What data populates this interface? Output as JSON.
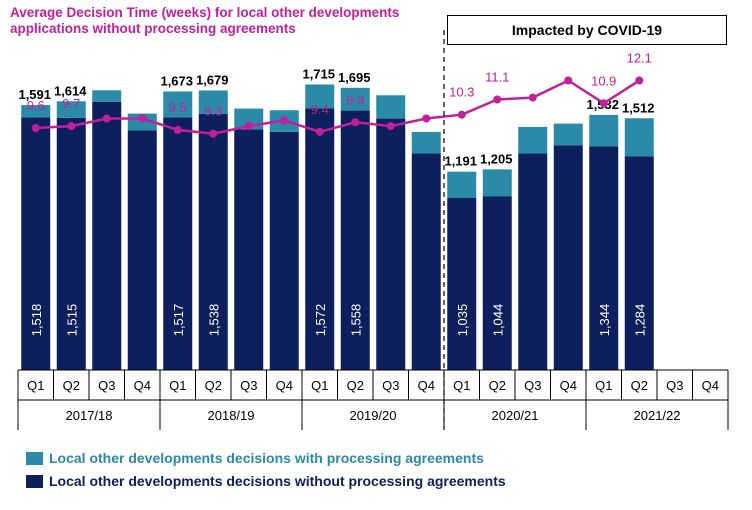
{
  "chart_data": {
    "type": "bar",
    "title": "Average Decision Time (weeks) for local other developments applications without processing agreements",
    "title_lines": [
      "Average Decision Time (weeks) for local other developments",
      "applications without processing agreements"
    ],
    "annotation": "Impacted by COVID-19",
    "quarters": [
      "Q1",
      "Q2",
      "Q3",
      "Q4",
      "Q1",
      "Q2",
      "Q3",
      "Q4",
      "Q1",
      "Q2",
      "Q3",
      "Q4",
      "Q1",
      "Q2",
      "Q3",
      "Q4",
      "Q1",
      "Q2",
      "Q3",
      "Q4"
    ],
    "years": [
      "2017/18",
      "2018/19",
      "2019/20",
      "2020/21",
      "2021/22"
    ],
    "series": [
      {
        "name": "Local other developments decisions without processing agreements",
        "color": "#0d1f5c",
        "values": [
          1518,
          1515,
          1610,
          1440,
          1517,
          1538,
          1445,
          1430,
          1572,
          1558,
          1510,
          1300,
          1035,
          1044,
          1300,
          1350,
          1344,
          1284,
          null,
          null
        ]
      },
      {
        "name": "Local other developments decisions with processing agreements",
        "color": "#2a8aa8",
        "values": [
          73,
          99,
          70,
          100,
          156,
          141,
          125,
          130,
          143,
          137,
          140,
          130,
          156,
          161,
          160,
          130,
          188,
          228,
          null,
          null
        ]
      }
    ],
    "bar_labels_inside": [
      "1,518",
      "1,515",
      "",
      "",
      "1,517",
      "1,538",
      "",
      "",
      "1,572",
      "1,558",
      "",
      "",
      "1,035",
      "1,044",
      "",
      "",
      "1,344",
      "1,284",
      "",
      ""
    ],
    "bar_labels_top": [
      "1,591",
      "1,614",
      "",
      "",
      "1,673",
      "1,679",
      "",
      "",
      "1,715",
      "1,695",
      "",
      "",
      "1,191",
      "1,205",
      "",
      "",
      "1,532",
      "1,512",
      "",
      ""
    ],
    "line": {
      "name": "Average Decision Time (weeks)",
      "color": "#c21f9c",
      "values": [
        9.6,
        9.7,
        10.1,
        10.1,
        9.5,
        9.3,
        9.7,
        10.0,
        9.4,
        9.9,
        9.7,
        10.1,
        10.3,
        11.1,
        11.2,
        12.1,
        10.9,
        12.1,
        null,
        null
      ],
      "labels": [
        "9.6",
        "9.7",
        "",
        "",
        "9.5",
        "9.3",
        "",
        "",
        "9.4",
        "9.9",
        "",
        "",
        "10.3",
        "11.1",
        "",
        "",
        "10.9",
        "12.1",
        "",
        ""
      ]
    },
    "ylim_bars": [
      0,
      2200
    ],
    "covid_start_index": 12
  },
  "legend": {
    "with": "Local other developments decisions with processing agreements",
    "without": "Local other developments decisions without processing agreements"
  }
}
